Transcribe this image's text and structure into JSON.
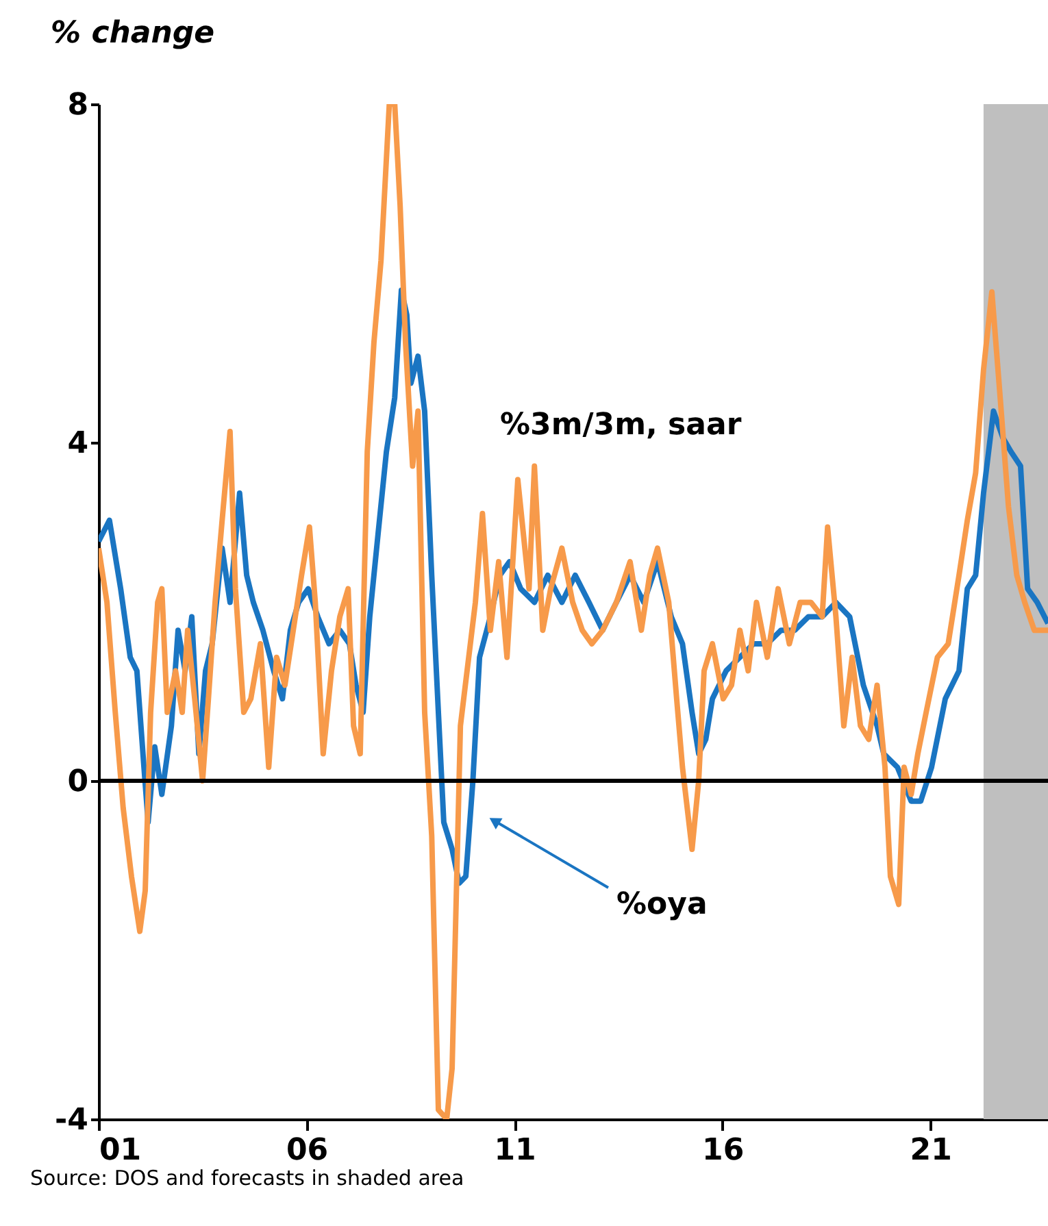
{
  "chart_data": {
    "type": "line",
    "title": "% change",
    "annotations": [
      "Source: DOS and forecasts in shaded area"
    ],
    "xlim": [
      2001,
      2023.83
    ],
    "xticks": [
      {
        "value": 2001,
        "label": "01"
      },
      {
        "value": 2006,
        "label": "06"
      },
      {
        "value": 2011,
        "label": "11"
      },
      {
        "value": 2016,
        "label": "16"
      },
      {
        "value": 2021,
        "label": "21"
      }
    ],
    "ylim": [
      -4,
      8
    ],
    "yticks": [
      -4,
      0,
      4,
      8
    ],
    "line_style": "solid",
    "marker": "none",
    "ref_lines": [
      {
        "axis": "y",
        "value": 0,
        "color": "#000000",
        "line_style": "solid"
      }
    ],
    "bands": [
      {
        "axis": "x",
        "from": 2022.28,
        "to": 2023.83,
        "color": "#bfbfbf"
      }
    ],
    "series": [
      {
        "name": "%oya",
        "color": "#1a75c2",
        "x": [
          2001.0,
          2001.26,
          2001.53,
          2001.76,
          2001.92,
          2002.09,
          2002.19,
          2002.35,
          2002.52,
          2002.75,
          2002.91,
          2003.08,
          2003.24,
          2003.41,
          2003.57,
          2003.73,
          2003.97,
          2004.16,
          2004.39,
          2004.56,
          2004.72,
          2004.95,
          2005.21,
          2005.42,
          2005.61,
          2005.81,
          2006.04,
          2006.27,
          2006.54,
          2006.8,
          2007.03,
          2007.19,
          2007.36,
          2007.52,
          2007.72,
          2007.92,
          2008.12,
          2008.28,
          2008.41,
          2008.51,
          2008.68,
          2008.84,
          2009.01,
          2009.17,
          2009.3,
          2009.5,
          2009.67,
          2009.83,
          2010.0,
          2010.16,
          2010.42,
          2010.65,
          2010.88,
          2011.15,
          2011.48,
          2011.8,
          2012.14,
          2012.46,
          2012.79,
          2013.12,
          2013.45,
          2013.78,
          2014.11,
          2014.44,
          2014.77,
          2015.04,
          2015.27,
          2015.43,
          2015.6,
          2015.76,
          2016.09,
          2016.42,
          2016.75,
          2017.08,
          2017.41,
          2017.74,
          2018.07,
          2018.4,
          2018.73,
          2019.06,
          2019.39,
          2019.72,
          2019.88,
          2020.21,
          2020.54,
          2020.77,
          2021.03,
          2021.36,
          2021.69,
          2021.89,
          2022.09,
          2022.28,
          2022.52,
          2022.75,
          2022.94,
          2023.17,
          2023.34,
          2023.57,
          2023.83
        ],
        "values": [
          2.83,
          3.08,
          2.27,
          1.46,
          1.3,
          0.16,
          -0.49,
          0.4,
          -0.16,
          0.65,
          1.78,
          1.3,
          1.94,
          0.32,
          1.3,
          1.62,
          2.75,
          2.11,
          3.4,
          2.43,
          2.11,
          1.78,
          1.3,
          0.97,
          1.78,
          2.11,
          2.27,
          1.94,
          1.62,
          1.78,
          1.62,
          1.13,
          0.81,
          1.94,
          2.92,
          3.89,
          4.53,
          5.8,
          5.51,
          4.7,
          5.02,
          4.37,
          2.43,
          0.81,
          -0.49,
          -0.81,
          -1.21,
          -1.13,
          0.0,
          1.46,
          1.94,
          2.43,
          2.59,
          2.27,
          2.11,
          2.43,
          2.11,
          2.43,
          2.11,
          1.78,
          2.11,
          2.43,
          2.11,
          2.59,
          1.94,
          1.62,
          0.81,
          0.32,
          0.49,
          0.97,
          1.3,
          1.46,
          1.62,
          1.62,
          1.78,
          1.78,
          1.94,
          1.94,
          2.11,
          1.94,
          1.13,
          0.65,
          0.32,
          0.16,
          -0.24,
          -0.24,
          0.16,
          0.97,
          1.3,
          2.27,
          2.43,
          3.4,
          4.37,
          4.05,
          3.89,
          3.72,
          2.27,
          2.11,
          1.86
        ]
      },
      {
        "name": "%3m/3m, saar",
        "color": "#f79a4a",
        "x": [
          2001.0,
          2001.2,
          2001.4,
          2001.59,
          2001.79,
          2001.99,
          2002.12,
          2002.25,
          2002.42,
          2002.52,
          2002.65,
          2002.85,
          2003.01,
          2003.14,
          2003.31,
          2003.5,
          2003.64,
          2003.8,
          2003.97,
          2004.16,
          2004.29,
          2004.49,
          2004.66,
          2004.89,
          2005.09,
          2005.28,
          2005.48,
          2005.68,
          2005.88,
          2006.07,
          2006.21,
          2006.4,
          2006.6,
          2006.8,
          2007.0,
          2007.13,
          2007.29,
          2007.46,
          2007.62,
          2007.79,
          2007.99,
          2008.12,
          2008.25,
          2008.38,
          2008.55,
          2008.68,
          2008.84,
          2009.01,
          2009.17,
          2009.37,
          2009.5,
          2009.7,
          2009.86,
          2010.06,
          2010.23,
          2010.42,
          2010.62,
          2010.82,
          2011.08,
          2011.35,
          2011.48,
          2011.68,
          2011.87,
          2012.14,
          2012.4,
          2012.63,
          2012.86,
          2013.12,
          2013.45,
          2013.78,
          2014.05,
          2014.25,
          2014.44,
          2014.71,
          2014.9,
          2015.04,
          2015.27,
          2015.43,
          2015.56,
          2015.76,
          2016.02,
          2016.22,
          2016.42,
          2016.62,
          2016.82,
          2017.08,
          2017.34,
          2017.61,
          2017.87,
          2018.13,
          2018.4,
          2018.53,
          2018.73,
          2018.92,
          2019.12,
          2019.32,
          2019.52,
          2019.72,
          2019.91,
          2020.04,
          2020.24,
          2020.37,
          2020.54,
          2020.7,
          2020.9,
          2021.17,
          2021.43,
          2021.69,
          2021.89,
          2022.09,
          2022.28,
          2022.48,
          2022.68,
          2022.88,
          2023.08,
          2023.27,
          2023.5,
          2023.83
        ],
        "values": [
          2.75,
          2.11,
          0.81,
          -0.32,
          -1.13,
          -1.78,
          -1.3,
          0.81,
          2.11,
          2.27,
          0.81,
          1.3,
          0.81,
          1.78,
          0.97,
          0.0,
          0.97,
          2.11,
          3.08,
          4.13,
          2.27,
          0.81,
          0.97,
          1.62,
          0.16,
          1.46,
          1.13,
          1.78,
          2.43,
          3.0,
          2.11,
          0.32,
          1.3,
          1.94,
          2.27,
          0.65,
          0.32,
          3.89,
          5.18,
          6.15,
          8.0,
          8.0,
          6.8,
          5.18,
          3.72,
          4.37,
          0.81,
          -0.65,
          -3.89,
          -4.0,
          -3.4,
          0.65,
          1.3,
          2.11,
          3.16,
          1.78,
          2.59,
          1.46,
          3.56,
          2.27,
          3.72,
          1.78,
          2.27,
          2.75,
          2.11,
          1.78,
          1.62,
          1.78,
          2.11,
          2.59,
          1.78,
          2.43,
          2.75,
          2.11,
          0.97,
          0.16,
          -0.81,
          0.0,
          1.3,
          1.62,
          0.97,
          1.13,
          1.78,
          1.3,
          2.11,
          1.46,
          2.27,
          1.62,
          2.11,
          2.11,
          1.94,
          3.0,
          1.94,
          0.65,
          1.46,
          0.65,
          0.49,
          1.13,
          0.16,
          -1.13,
          -1.46,
          0.16,
          -0.16,
          0.32,
          0.81,
          1.46,
          1.62,
          2.43,
          3.08,
          3.64,
          4.86,
          5.78,
          4.53,
          3.24,
          2.43,
          2.11,
          1.78,
          1.78
        ]
      }
    ]
  }
}
